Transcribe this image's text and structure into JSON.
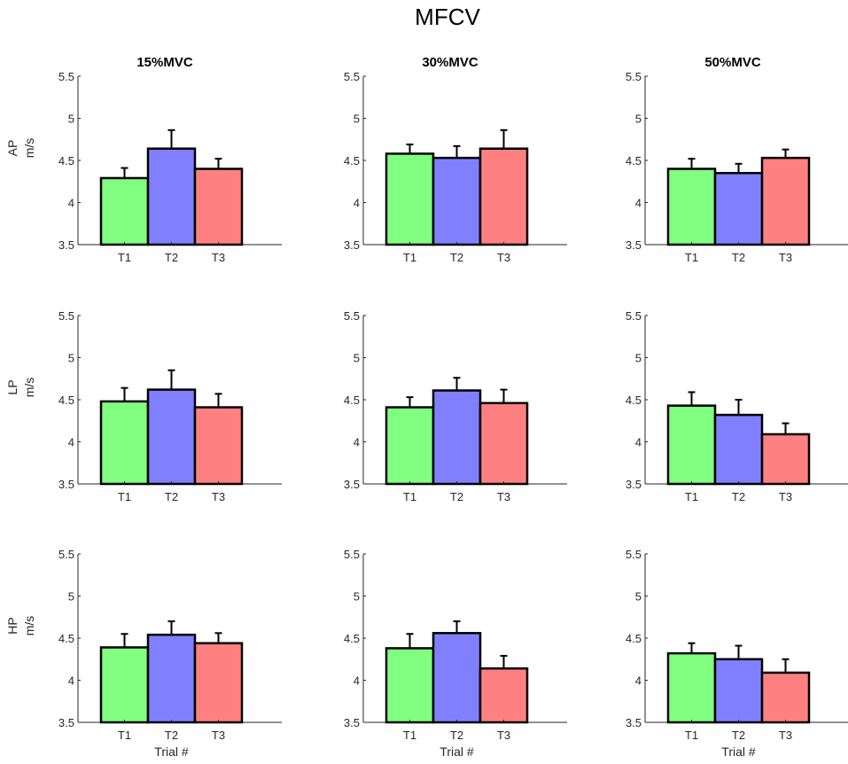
{
  "figure": {
    "title": "MFCV",
    "column_titles": [
      "15%MVC",
      "30%MVC",
      "50%MVC"
    ],
    "row_labels": [
      "AP",
      "LP",
      "HP"
    ],
    "unit_label": "m/s",
    "x_axis_label": "Trial #",
    "colors": {
      "T1": "#80ff80",
      "T2": "#8080ff",
      "T3": "#ff8080",
      "edge": "#000000"
    }
  },
  "chart_data": [
    {
      "type": "bar",
      "row": "AP",
      "condition": "15%MVC",
      "categories": [
        "T1",
        "T2",
        "T3"
      ],
      "values": [
        4.29,
        4.64,
        4.4
      ],
      "errors": [
        0.12,
        0.22,
        0.12
      ],
      "ylim": [
        3.5,
        5.5
      ],
      "yticks": [
        3.5,
        4,
        4.5,
        5,
        5.5
      ],
      "ytick_labels": [
        "3.5",
        "4",
        "4.5",
        "5",
        "5.5"
      ],
      "xlabel": "",
      "ylabel": "m/s"
    },
    {
      "type": "bar",
      "row": "AP",
      "condition": "30%MVC",
      "categories": [
        "T1",
        "T2",
        "T3"
      ],
      "values": [
        4.58,
        4.53,
        4.64
      ],
      "errors": [
        0.11,
        0.14,
        0.22
      ],
      "ylim": [
        3.5,
        5.5
      ],
      "yticks": [
        3.5,
        4,
        4.5,
        5,
        5.5
      ],
      "ytick_labels": [
        "3.5",
        "4",
        "4.5",
        "5",
        "5.5"
      ],
      "xlabel": "",
      "ylabel": "m/s"
    },
    {
      "type": "bar",
      "row": "AP",
      "condition": "50%MVC",
      "categories": [
        "T1",
        "T2",
        "T3"
      ],
      "values": [
        4.4,
        4.35,
        4.53
      ],
      "errors": [
        0.12,
        0.11,
        0.1
      ],
      "ylim": [
        3.5,
        5.5
      ],
      "yticks": [
        3.5,
        4,
        4.5,
        5,
        5.5
      ],
      "ytick_labels": [
        "3.5",
        "4",
        "4.5",
        "5",
        "5.5"
      ],
      "xlabel": "",
      "ylabel": "m/s"
    },
    {
      "type": "bar",
      "row": "LP",
      "condition": "15%MVC",
      "categories": [
        "T1",
        "T2",
        "T3"
      ],
      "values": [
        4.48,
        4.62,
        4.41
      ],
      "errors": [
        0.16,
        0.23,
        0.16
      ],
      "ylim": [
        3.5,
        5.5
      ],
      "yticks": [
        3.5,
        4,
        4.5,
        5,
        5.5
      ],
      "ytick_labels": [
        "3.5",
        "4",
        "4.5",
        "5",
        "5.5"
      ],
      "xlabel": "",
      "ylabel": "m/s"
    },
    {
      "type": "bar",
      "row": "LP",
      "condition": "30%MVC",
      "categories": [
        "T1",
        "T2",
        "T3"
      ],
      "values": [
        4.41,
        4.61,
        4.46
      ],
      "errors": [
        0.12,
        0.15,
        0.16
      ],
      "ylim": [
        3.5,
        5.5
      ],
      "yticks": [
        3.5,
        4,
        4.5,
        5,
        5.5
      ],
      "ytick_labels": [
        "3.5",
        "4",
        "4.5",
        "5",
        "5.5"
      ],
      "xlabel": "",
      "ylabel": "m/s"
    },
    {
      "type": "bar",
      "row": "LP",
      "condition": "50%MVC",
      "categories": [
        "T1",
        "T2",
        "T3"
      ],
      "values": [
        4.43,
        4.32,
        4.09
      ],
      "errors": [
        0.16,
        0.18,
        0.13
      ],
      "ylim": [
        3.5,
        5.5
      ],
      "yticks": [
        3.5,
        4,
        4.5,
        5,
        5.5
      ],
      "ytick_labels": [
        "3.5",
        "4",
        "4.5",
        "5",
        "5.5"
      ],
      "xlabel": "",
      "ylabel": "m/s"
    },
    {
      "type": "bar",
      "row": "HP",
      "condition": "15%MVC",
      "categories": [
        "T1",
        "T2",
        "T3"
      ],
      "values": [
        4.39,
        4.54,
        4.44
      ],
      "errors": [
        0.16,
        0.16,
        0.12
      ],
      "ylim": [
        3.5,
        5.5
      ],
      "yticks": [
        3.5,
        4,
        4.5,
        5,
        5.5
      ],
      "ytick_labels": [
        "3.5",
        "4",
        "4.5",
        "5",
        "5.5"
      ],
      "xlabel": "Trial #",
      "ylabel": "m/s"
    },
    {
      "type": "bar",
      "row": "HP",
      "condition": "30%MVC",
      "categories": [
        "T1",
        "T2",
        "T3"
      ],
      "values": [
        4.38,
        4.56,
        4.14
      ],
      "errors": [
        0.17,
        0.14,
        0.15
      ],
      "ylim": [
        3.5,
        5.5
      ],
      "yticks": [
        3.5,
        4,
        4.5,
        5,
        5.5
      ],
      "ytick_labels": [
        "3.5",
        "4",
        "4.5",
        "5",
        "5.5"
      ],
      "xlabel": "Trial #",
      "ylabel": "m/s"
    },
    {
      "type": "bar",
      "row": "HP",
      "condition": "50%MVC",
      "categories": [
        "T1",
        "T2",
        "T3"
      ],
      "values": [
        4.32,
        4.25,
        4.09
      ],
      "errors": [
        0.12,
        0.16,
        0.16
      ],
      "ylim": [
        3.5,
        5.5
      ],
      "yticks": [
        3.5,
        4,
        4.5,
        5,
        5.5
      ],
      "ytick_labels": [
        "3.5",
        "4",
        "4.5",
        "5",
        "5.5"
      ],
      "xlabel": "Trial #",
      "ylabel": "m/s"
    }
  ]
}
